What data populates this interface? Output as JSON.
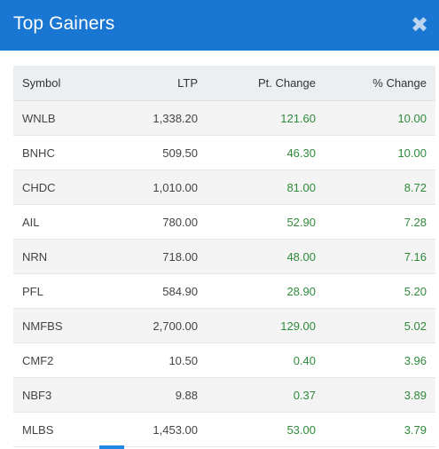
{
  "dialog": {
    "title": "Top Gainers",
    "close_label": "✖"
  },
  "table": {
    "columns": [
      "Symbol",
      "LTP",
      "Pt. Change",
      "% Change"
    ],
    "rows": [
      {
        "symbol": "WNLB",
        "ltp": "1,338.20",
        "pt_change": "121.60",
        "pct_change": "10.00"
      },
      {
        "symbol": "BNHC",
        "ltp": "509.50",
        "pt_change": "46.30",
        "pct_change": "10.00"
      },
      {
        "symbol": "CHDC",
        "ltp": "1,010.00",
        "pt_change": "81.00",
        "pct_change": "8.72"
      },
      {
        "symbol": "AIL",
        "ltp": "780.00",
        "pt_change": "52.90",
        "pct_change": "7.28"
      },
      {
        "symbol": "NRN",
        "ltp": "718.00",
        "pt_change": "48.00",
        "pct_change": "7.16"
      },
      {
        "symbol": "PFL",
        "ltp": "584.90",
        "pt_change": "28.90",
        "pct_change": "5.20"
      },
      {
        "symbol": "NMFBS",
        "ltp": "2,700.00",
        "pt_change": "129.00",
        "pct_change": "5.02"
      },
      {
        "symbol": "CMF2",
        "ltp": "10.50",
        "pt_change": "0.40",
        "pct_change": "3.96"
      },
      {
        "symbol": "NBF3",
        "ltp": "9.88",
        "pt_change": "0.37",
        "pct_change": "3.89"
      },
      {
        "symbol": "MLBS",
        "ltp": "1,453.00",
        "pt_change": "53.00",
        "pct_change": "3.79"
      }
    ]
  },
  "colors": {
    "header_bg": "#1976d2",
    "positive_change": "#2e8b3a",
    "scroll_indicator": "#1e88e5"
  }
}
